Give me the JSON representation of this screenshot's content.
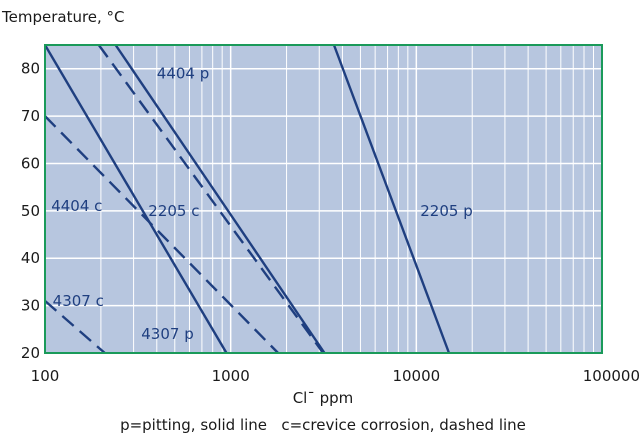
{
  "chart_data": {
    "type": "line",
    "title": "",
    "ylabel": "Temperature, °C",
    "xlabel": "Cl¯ ppm",
    "caption": "p=pitting, solid line   c=crevice corrosion, dashed line",
    "xscale": "log",
    "xlim": [
      100,
      100000
    ],
    "ylim": [
      20,
      85
    ],
    "xticks": [
      100,
      1000,
      10000,
      100000
    ],
    "xtick_labels": [
      "100",
      "1000",
      "10000",
      "100000"
    ],
    "yticks": [
      20,
      30,
      40,
      50,
      60,
      70,
      80
    ],
    "ytick_labels": [
      "20",
      "30",
      "40",
      "50",
      "60",
      "70",
      "80"
    ],
    "grid": true,
    "colors": {
      "plot_bg": "#b7c6df",
      "frame": "#1a9a5a",
      "line": "#1f3f80",
      "grid": "#ffffff"
    },
    "series": [
      {
        "name": "4404 p",
        "style": "solid",
        "x": [
          240,
          3200
        ],
        "y": [
          85,
          20
        ]
      },
      {
        "name": "4307 p",
        "style": "solid",
        "x": [
          100,
          950
        ],
        "y": [
          85,
          20
        ]
      },
      {
        "name": "2205 p",
        "style": "solid",
        "x": [
          3600,
          15000
        ],
        "y": [
          85,
          20
        ]
      },
      {
        "name": "4404 c",
        "style": "dashed",
        "x": [
          100,
          1800
        ],
        "y": [
          70,
          20
        ]
      },
      {
        "name": "2205 c",
        "style": "dashed",
        "x": [
          195,
          3150
        ],
        "y": [
          85,
          20
        ]
      },
      {
        "name": "4307 c",
        "style": "dashed",
        "x": [
          100,
          210
        ],
        "y": [
          31,
          20
        ]
      }
    ],
    "labels": [
      {
        "text": "4404 p",
        "x": 400,
        "y": 79
      },
      {
        "text": "4404 c",
        "x": 108,
        "y": 51
      },
      {
        "text": "2205 c",
        "x": 360,
        "y": 50
      },
      {
        "text": "2205 p",
        "x": 10500,
        "y": 50
      },
      {
        "text": "4307 c",
        "x": 110,
        "y": 31
      },
      {
        "text": "4307 p",
        "x": 330,
        "y": 24
      }
    ]
  }
}
